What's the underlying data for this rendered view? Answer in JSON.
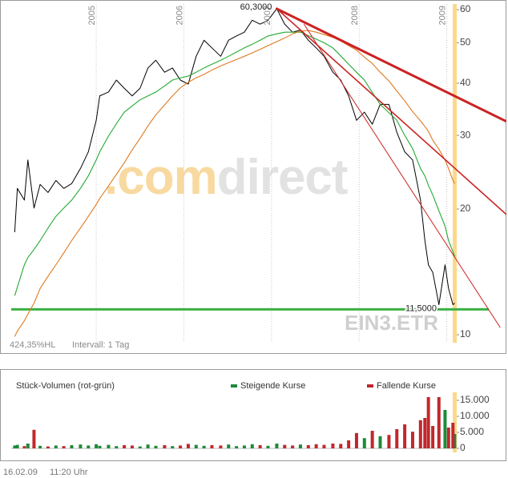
{
  "chart_data": [
    {
      "type": "line",
      "watermark": [
        ".com",
        "direct"
      ],
      "symbol": "EIN3.ETR",
      "notes": [
        "424,35%HL",
        "Intervall: 1 Tag"
      ],
      "x": [
        2004.07,
        2004.1,
        2004.18,
        2004.22,
        2004.29,
        2004.36,
        2004.45,
        2004.54,
        2004.63,
        2004.72,
        2004.82,
        2004.91,
        2005.0,
        2005.04,
        2005.14,
        2005.23,
        2005.32,
        2005.41,
        2005.5,
        2005.59,
        2005.68,
        2005.78,
        2005.87,
        2005.96,
        2006.05,
        2006.14,
        2006.23,
        2006.32,
        2006.42,
        2006.51,
        2006.6,
        2006.69,
        2006.78,
        2006.87,
        2006.96,
        2007.06,
        2007.15,
        2007.24,
        2007.33,
        2007.42,
        2007.51,
        2007.6,
        2007.7,
        2007.79,
        2007.88,
        2007.97,
        2008.06,
        2008.15,
        2008.24,
        2008.34,
        2008.43,
        2008.52,
        2008.61,
        2008.7,
        2008.75,
        2008.79,
        2008.84,
        2008.91,
        2008.98,
        2009.02,
        2009.07,
        2009.09
      ],
      "series": [
        {
          "color": "#000000",
          "values": [
            17.6,
            22.4,
            21.0,
            26.2,
            20.1,
            22.9,
            21.9,
            23.4,
            22.4,
            23.0,
            25.0,
            27.4,
            32.6,
            37.3,
            38.1,
            40.7,
            38.9,
            37.3,
            38.9,
            43.5,
            45.4,
            42.5,
            43.5,
            40.7,
            39.8,
            46.4,
            50.7,
            48.6,
            46.4,
            50.7,
            51.9,
            53.0,
            56.6,
            55.4,
            56.6,
            60.3,
            55.4,
            53.0,
            53.6,
            50.7,
            48.6,
            46.4,
            42.5,
            40.7,
            37.3,
            32.6,
            34.1,
            31.9,
            35.6,
            35.6,
            30.5,
            27.4,
            26.2,
            21.0,
            16.8,
            14.7,
            14.1,
            11.8,
            14.7,
            12.9,
            11.8,
            11.9
          ]
        },
        {
          "color": "#22aa33",
          "values": [
            12.4,
            13.0,
            14.7,
            15.3,
            16.0,
            16.8,
            18.0,
            19.2,
            20.1,
            21.0,
            22.4,
            24.0,
            26.2,
            27.4,
            29.9,
            32.0,
            34.1,
            35.3,
            36.5,
            37.3,
            38.1,
            39.4,
            40.7,
            41.2,
            41.6,
            42.5,
            43.5,
            44.4,
            45.4,
            46.4,
            47.5,
            48.6,
            49.6,
            50.7,
            51.9,
            52.5,
            53.0,
            53.0,
            53.0,
            52.0,
            51.0,
            50.0,
            48.6,
            46.5,
            44.4,
            42.5,
            40.7,
            38.0,
            35.6,
            34.0,
            32.6,
            30.0,
            27.9,
            25.0,
            24.0,
            22.8,
            21.6,
            19.8,
            18.2,
            16.8,
            15.8,
            15.4
          ]
        },
        {
          "color": "#e07a1f",
          "values": [
            9.9,
            10.2,
            10.8,
            11.2,
            11.9,
            12.9,
            13.8,
            14.7,
            15.7,
            16.8,
            18.0,
            19.2,
            20.5,
            21.2,
            22.7,
            24.2,
            25.8,
            27.7,
            29.5,
            31.6,
            33.6,
            35.5,
            37.3,
            39.0,
            40.2,
            41.2,
            42.0,
            43.0,
            44.0,
            44.8,
            45.6,
            46.4,
            47.3,
            48.2,
            49.2,
            50.3,
            51.3,
            52.5,
            53.3,
            53.5,
            53.0,
            52.3,
            51.5,
            50.5,
            49.2,
            48.0,
            46.2,
            44.6,
            42.5,
            40.5,
            38.3,
            36.3,
            34.2,
            32.5,
            31.5,
            30.7,
            29.2,
            27.8,
            26.2,
            25.0,
            23.4,
            23.0
          ]
        }
      ],
      "xlim": [
        2004.03,
        2009.68
      ],
      "xticks": [
        2005,
        2006,
        2007,
        2008,
        2009
      ],
      "ylim": [
        9.57,
        61.9
      ],
      "yticks": [
        10,
        20,
        30,
        40,
        50,
        60
      ],
      "log_scale": true,
      "trendlines": [
        {
          "color": "#cc2222",
          "x": [
            2007.06,
            2009.68
          ],
          "y": [
            60.3,
            32.4
          ]
        },
        {
          "color": "#cc2222",
          "x": [
            2007.06,
            2009.68
          ],
          "y": [
            60.3,
            19.4
          ]
        },
        {
          "color": "#cc2222",
          "x": [
            2007.37,
            2009.61
          ],
          "y": [
            55.4,
            10.4
          ]
        }
      ],
      "hlines": [
        {
          "value": 11.5,
          "label": "11,5000",
          "color": "#3cb043"
        }
      ],
      "annotations": [
        {
          "x": 2007.06,
          "value": 60.3,
          "label": "60,3000"
        }
      ]
    },
    {
      "type": "bar",
      "title": "Stück-Volumen (rot-grün)",
      "x": [
        2004.07,
        2004.1,
        2004.18,
        2004.22,
        2004.29,
        2004.36,
        2004.45,
        2004.54,
        2004.63,
        2004.72,
        2004.82,
        2004.91,
        2005.0,
        2005.04,
        2005.14,
        2005.23,
        2005.32,
        2005.41,
        2005.5,
        2005.59,
        2005.68,
        2005.78,
        2005.87,
        2005.96,
        2006.05,
        2006.14,
        2006.23,
        2006.32,
        2006.42,
        2006.51,
        2006.6,
        2006.69,
        2006.78,
        2006.87,
        2006.96,
        2007.06,
        2007.15,
        2007.24,
        2007.33,
        2007.42,
        2007.51,
        2007.6,
        2007.7,
        2007.79,
        2007.88,
        2007.97,
        2008.06,
        2008.15,
        2008.24,
        2008.34,
        2008.43,
        2008.52,
        2008.61,
        2008.7,
        2008.75,
        2008.79,
        2008.84,
        2008.91,
        2008.98,
        2009.02,
        2009.07,
        2009.09
      ],
      "series": [
        {
          "name": "Steigende Kurse",
          "color": "#1e8a3a",
          "values": [
            900,
            1100,
            null,
            1500,
            null,
            800,
            null,
            900,
            null,
            1000,
            1200,
            900,
            1300,
            800,
            1100,
            700,
            null,
            null,
            600,
            1200,
            800,
            null,
            700,
            null,
            null,
            1100,
            800,
            null,
            null,
            1200,
            700,
            900,
            1300,
            null,
            800,
            1500,
            null,
            null,
            1200,
            null,
            null,
            null,
            null,
            null,
            null,
            null,
            3200,
            null,
            3800,
            null,
            null,
            null,
            null,
            null,
            null,
            null,
            null,
            null,
            12000,
            null,
            null,
            4500
          ]
        },
        {
          "name": "Fallende Kurse",
          "color": "#c0282d",
          "values": [
            null,
            null,
            700,
            null,
            5800,
            null,
            600,
            null,
            700,
            null,
            null,
            null,
            null,
            null,
            null,
            null,
            1000,
            900,
            null,
            null,
            null,
            1000,
            null,
            900,
            1400,
            null,
            null,
            1000,
            900,
            null,
            null,
            null,
            null,
            1000,
            null,
            null,
            1100,
            900,
            null,
            1000,
            1300,
            1100,
            1500,
            1400,
            2500,
            4800,
            null,
            5500,
            null,
            4200,
            6000,
            7500,
            5200,
            8800,
            9500,
            16000,
            7000,
            16000,
            null,
            6500,
            8000,
            null
          ]
        }
      ],
      "xlim": [
        2004.03,
        2009.68
      ],
      "ylim": [
        0,
        17000
      ],
      "yticks": [
        0,
        {
          "value": 5000,
          "label": "5.000"
        },
        {
          "value": 10000,
          "label": "10.000"
        },
        {
          "value": 15000,
          "label": "15.000"
        }
      ]
    }
  ],
  "footer": {
    "date": "16.02.09",
    "time": "11:20 Uhr"
  }
}
